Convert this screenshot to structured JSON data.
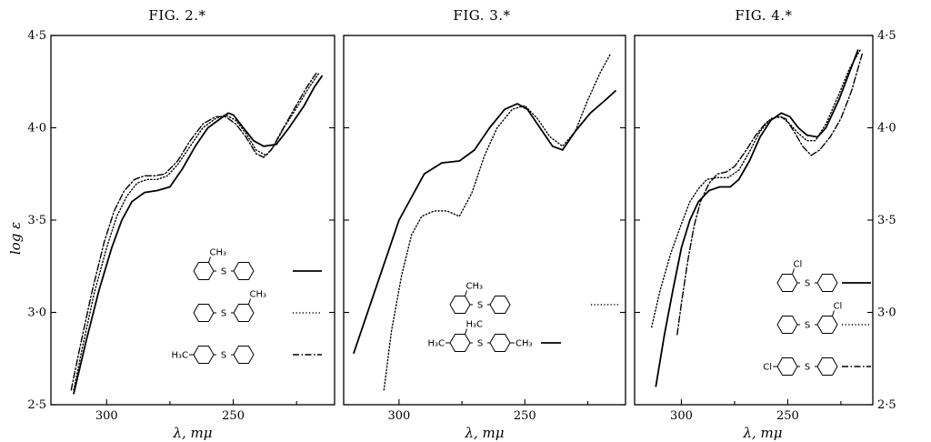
{
  "yaxis": {
    "title": "log ε",
    "ticks": [
      {
        "value": 2.5,
        "label": "2·5"
      },
      {
        "value": 3.0,
        "label": "3·0"
      },
      {
        "value": 3.5,
        "label": "3·5"
      },
      {
        "value": 4.0,
        "label": "4·0"
      },
      {
        "value": 4.5,
        "label": "4·5"
      }
    ]
  },
  "line_styles": {
    "solid": "solid",
    "dotted": "dotted",
    "dashdot": "dash-dot"
  },
  "chart_data": [
    {
      "type": "line",
      "title": "FIG. 2.*",
      "xlabel": "λ, mμ",
      "ylabel": "log ε",
      "xlim": [
        322,
        210
      ],
      "ylim": [
        2.5,
        4.5
      ],
      "xticks": [
        {
          "value": 300,
          "label": "300"
        },
        {
          "value": 250,
          "label": "250"
        }
      ],
      "legend": [
        {
          "ring1_sub": "",
          "ring1_sub_pos": "",
          "ring2_sub": "",
          "ring2_sub_pos": "",
          "top_sub": "CH3",
          "top_sub_ring": 1,
          "style": "solid"
        },
        {
          "ring1_sub": "",
          "ring1_sub_pos": "",
          "ring2_sub": "",
          "ring2_sub_pos": "",
          "top_sub": "CH3",
          "top_sub_ring": 2,
          "style": "dotted"
        },
        {
          "ring1_sub": "H3C",
          "ring1_sub_pos": "para",
          "ring2_sub": "",
          "ring2_sub_pos": "",
          "top_sub": "",
          "top_sub_ring": 0,
          "style": "dashdot"
        }
      ],
      "series": [
        {
          "style": "solid",
          "points": [
            [
              313,
              2.56
            ],
            [
              308,
              2.85
            ],
            [
              303,
              3.12
            ],
            [
              298,
              3.35
            ],
            [
              294,
              3.5
            ],
            [
              290,
              3.6
            ],
            [
              285,
              3.65
            ],
            [
              280,
              3.66
            ],
            [
              275,
              3.68
            ],
            [
              270,
              3.78
            ],
            [
              265,
              3.9
            ],
            [
              260,
              4.0
            ],
            [
              255,
              4.05
            ],
            [
              252,
              4.08
            ],
            [
              250,
              4.07
            ],
            [
              246,
              4.0
            ],
            [
              242,
              3.93
            ],
            [
              238,
              3.9
            ],
            [
              233,
              3.91
            ],
            [
              228,
              4.0
            ],
            [
              222,
              4.12
            ],
            [
              218,
              4.22
            ],
            [
              215,
              4.28
            ]
          ]
        },
        {
          "style": "dotted",
          "points": [
            [
              313,
              2.58
            ],
            [
              310,
              2.78
            ],
            [
              305,
              3.1
            ],
            [
              300,
              3.35
            ],
            [
              296,
              3.52
            ],
            [
              292,
              3.63
            ],
            [
              288,
              3.7
            ],
            [
              284,
              3.72
            ],
            [
              280,
              3.72
            ],
            [
              276,
              3.74
            ],
            [
              272,
              3.8
            ],
            [
              267,
              3.9
            ],
            [
              262,
              4.0
            ],
            [
              257,
              4.05
            ],
            [
              253,
              4.07
            ],
            [
              249,
              4.04
            ],
            [
              245,
              3.97
            ],
            [
              241,
              3.88
            ],
            [
              237,
              3.85
            ],
            [
              234,
              3.9
            ],
            [
              230,
              4.0
            ],
            [
              224,
              4.13
            ],
            [
              220,
              4.22
            ],
            [
              216,
              4.3
            ]
          ]
        },
        {
          "style": "dashdot",
          "points": [
            [
              314,
              2.58
            ],
            [
              311,
              2.78
            ],
            [
              306,
              3.1
            ],
            [
              301,
              3.38
            ],
            [
              297,
              3.55
            ],
            [
              293,
              3.66
            ],
            [
              289,
              3.72
            ],
            [
              285,
              3.74
            ],
            [
              281,
              3.74
            ],
            [
              277,
              3.75
            ],
            [
              272,
              3.82
            ],
            [
              267,
              3.93
            ],
            [
              262,
              4.02
            ],
            [
              257,
              4.06
            ],
            [
              253,
              4.06
            ],
            [
              249,
              4.02
            ],
            [
              245,
              3.95
            ],
            [
              241,
              3.86
            ],
            [
              238,
              3.84
            ],
            [
              235,
              3.88
            ],
            [
              231,
              3.98
            ],
            [
              226,
              4.1
            ],
            [
              221,
              4.22
            ],
            [
              217,
              4.3
            ]
          ]
        }
      ]
    },
    {
      "type": "line",
      "title": "FIG. 3.*",
      "xlabel": "λ, mμ",
      "ylabel": "log ε",
      "xlim": [
        322,
        210
      ],
      "ylim": [
        2.5,
        4.5
      ],
      "xticks": [
        {
          "value": 300,
          "label": "300"
        },
        {
          "value": 250,
          "label": "250"
        }
      ],
      "legend": [
        {
          "ring1_sub": "",
          "ring1_sub_pos": "",
          "ring2_sub": "",
          "ring2_sub_pos": "",
          "top_sub": "CH3",
          "top_sub_ring": 1,
          "style": "dotted"
        },
        {
          "ring1_sub": "H3C",
          "ring1_sub_pos": "para",
          "ring2_sub": "CH3",
          "ring2_sub_pos": "para",
          "top_sub": "H3C",
          "top_sub_ring": 1,
          "style": "solid"
        }
      ],
      "series": [
        {
          "style": "solid",
          "points": [
            [
              318,
              2.78
            ],
            [
              310,
              3.1
            ],
            [
              300,
              3.5
            ],
            [
              290,
              3.75
            ],
            [
              283,
              3.81
            ],
            [
              276,
              3.82
            ],
            [
              270,
              3.88
            ],
            [
              264,
              4.0
            ],
            [
              258,
              4.1
            ],
            [
              253,
              4.13
            ],
            [
              249,
              4.1
            ],
            [
              244,
              4.0
            ],
            [
              239,
              3.9
            ],
            [
              235,
              3.88
            ],
            [
              230,
              3.98
            ],
            [
              224,
              4.08
            ],
            [
              218,
              4.15
            ],
            [
              214,
              4.2
            ]
          ]
        },
        {
          "style": "dotted",
          "points": [
            [
              306,
              2.58
            ],
            [
              303,
              2.9
            ],
            [
              299,
              3.2
            ],
            [
              295,
              3.42
            ],
            [
              291,
              3.52
            ],
            [
              286,
              3.55
            ],
            [
              281,
              3.55
            ],
            [
              276,
              3.52
            ],
            [
              271,
              3.65
            ],
            [
              266,
              3.85
            ],
            [
              261,
              4.0
            ],
            [
              255,
              4.1
            ],
            [
              250,
              4.12
            ],
            [
              245,
              4.05
            ],
            [
              240,
              3.95
            ],
            [
              235,
              3.9
            ],
            [
              230,
              3.98
            ],
            [
              225,
              4.15
            ],
            [
              220,
              4.3
            ],
            [
              216,
              4.4
            ]
          ]
        }
      ]
    },
    {
      "type": "line",
      "title": "FIG. 4.*",
      "xlabel": "λ, mμ",
      "ylabel": "log ε",
      "xlim": [
        322,
        210
      ],
      "ylim": [
        2.5,
        4.5
      ],
      "xticks": [
        {
          "value": 300,
          "label": "300"
        },
        {
          "value": 250,
          "label": "250"
        }
      ],
      "legend": [
        {
          "ring1_sub": "",
          "ring1_sub_pos": "",
          "ring2_sub": "",
          "ring2_sub_pos": "",
          "top_sub": "Cl",
          "top_sub_ring": 1,
          "style": "solid"
        },
        {
          "ring1_sub": "",
          "ring1_sub_pos": "",
          "ring2_sub": "",
          "ring2_sub_pos": "",
          "top_sub": "Cl",
          "top_sub_ring": 2,
          "style": "dotted"
        },
        {
          "ring1_sub": "Cl",
          "ring1_sub_pos": "para",
          "ring2_sub": "",
          "ring2_sub_pos": "",
          "top_sub": "",
          "top_sub_ring": 0,
          "style": "dashdot"
        }
      ],
      "series": [
        {
          "style": "solid",
          "points": [
            [
              312,
              2.6
            ],
            [
              308,
              2.88
            ],
            [
              304,
              3.12
            ],
            [
              300,
              3.35
            ],
            [
              296,
              3.5
            ],
            [
              292,
              3.6
            ],
            [
              287,
              3.66
            ],
            [
              282,
              3.68
            ],
            [
              277,
              3.68
            ],
            [
              273,
              3.72
            ],
            [
              268,
              3.82
            ],
            [
              263,
              3.95
            ],
            [
              258,
              4.04
            ],
            [
              253,
              4.08
            ],
            [
              249,
              4.06
            ],
            [
              245,
              4.0
            ],
            [
              241,
              3.96
            ],
            [
              236,
              3.95
            ],
            [
              232,
              4.0
            ],
            [
              226,
              4.15
            ],
            [
              221,
              4.3
            ],
            [
              217,
              4.42
            ]
          ]
        },
        {
          "style": "dotted",
          "points": [
            [
              314,
              2.92
            ],
            [
              310,
              3.12
            ],
            [
              305,
              3.32
            ],
            [
              300,
              3.48
            ],
            [
              296,
              3.6
            ],
            [
              292,
              3.67
            ],
            [
              288,
              3.72
            ],
            [
              283,
              3.73
            ],
            [
              278,
              3.73
            ],
            [
              273,
              3.77
            ],
            [
              268,
              3.87
            ],
            [
              263,
              3.98
            ],
            [
              258,
              4.05
            ],
            [
              253,
              4.06
            ],
            [
              249,
              4.02
            ],
            [
              245,
              3.97
            ],
            [
              241,
              3.93
            ],
            [
              237,
              3.93
            ],
            [
              232,
              4.02
            ],
            [
              226,
              4.18
            ],
            [
              221,
              4.32
            ],
            [
              216,
              4.42
            ]
          ]
        },
        {
          "style": "dashdot",
          "points": [
            [
              302,
              2.88
            ],
            [
              300,
              3.05
            ],
            [
              297,
              3.28
            ],
            [
              294,
              3.47
            ],
            [
              291,
              3.6
            ],
            [
              287,
              3.7
            ],
            [
              283,
              3.75
            ],
            [
              279,
              3.76
            ],
            [
              275,
              3.79
            ],
            [
              270,
              3.87
            ],
            [
              265,
              3.96
            ],
            [
              260,
              4.03
            ],
            [
              255,
              4.06
            ],
            [
              251,
              4.05
            ],
            [
              247,
              3.98
            ],
            [
              243,
              3.9
            ],
            [
              239,
              3.85
            ],
            [
              235,
              3.88
            ],
            [
              230,
              3.95
            ],
            [
              225,
              4.05
            ],
            [
              220,
              4.2
            ],
            [
              215,
              4.4
            ]
          ]
        }
      ]
    }
  ]
}
